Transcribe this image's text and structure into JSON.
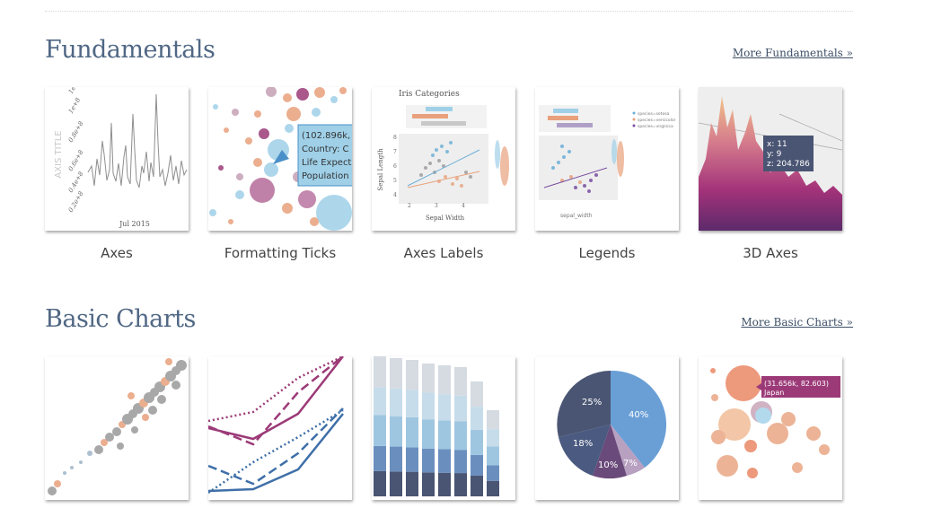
{
  "sections": [
    {
      "title": "Fundamentals",
      "more_link": "More Fundamentals »",
      "cards": [
        {
          "label": "Axes"
        },
        {
          "label": "Formatting Ticks"
        },
        {
          "label": "Axes Labels"
        },
        {
          "label": "Legends"
        },
        {
          "label": "3D Axes"
        }
      ]
    },
    {
      "title": "Basic Charts",
      "more_link": "More Basic Charts »",
      "cards": [
        {
          "label": ""
        },
        {
          "label": ""
        },
        {
          "label": ""
        },
        {
          "label": ""
        },
        {
          "label": ""
        }
      ]
    }
  ],
  "thumb_text": {
    "axes_ylabel": "AXIS TITLE",
    "axes_ticks": [
      "1e+8",
      "1e+8",
      "0.8e+8",
      "0.6e+8",
      "0.4e+8",
      "0.2e+8"
    ],
    "axes_xtick": "Jul 2015",
    "ticks_tooltip": [
      "(102.896k,",
      "Country: C",
      "Life Expect",
      "Population"
    ],
    "labels_title": "Iris Categories",
    "labels_xlabel": "Sepal Width",
    "labels_ylabel": "Sepal Length",
    "labels_xticks": [
      "2",
      "3",
      "4"
    ],
    "labels_yticks": [
      "8",
      "7",
      "6",
      "5",
      "4"
    ],
    "legends_items": [
      "species=setosa",
      "species=versicolor",
      "species=virginica"
    ],
    "legends_xlabel": "sepal_width",
    "axes3d_tooltip": [
      "x: 11",
      "y: 9",
      "z: 204.786"
    ],
    "pie_labels": [
      "25%",
      "40%",
      "18%",
      "10%",
      "7%"
    ],
    "bubble_tooltip": [
      "(31.656k, 82.603)",
      "Japan"
    ]
  },
  "colors": {
    "title": "#506784",
    "purple": "#9c3a78",
    "blue": "#3f6fa8",
    "light_blue": "#9fd0e8",
    "orange": "#e8a17c",
    "gray": "#999999",
    "dark_slate": "#4a5573"
  }
}
